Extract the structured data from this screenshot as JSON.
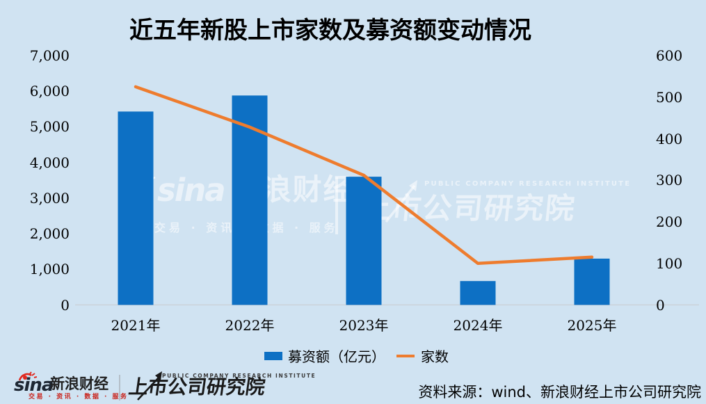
{
  "title": "近五年新股上市家数及募资额变动情况",
  "chart_data": {
    "type": "bar",
    "subtype": "dual-axis combo: bars (left axis) + line (right axis)",
    "categories": [
      "2021年",
      "2022年",
      "2023年",
      "2024年",
      "2025年"
    ],
    "series": [
      {
        "name": "募资额（亿元）",
        "type": "bar",
        "axis": "left",
        "color": "#0d70c4",
        "values": [
          5430,
          5880,
          3600,
          670,
          1300
        ]
      },
      {
        "name": "家数",
        "type": "line",
        "axis": "right",
        "color": "#ee7c2e",
        "values": [
          525,
          428,
          312,
          100,
          115
        ]
      }
    ],
    "left_axis": {
      "min": 0,
      "max": 7000,
      "ticks": [
        "7,000",
        "6,000",
        "5,000",
        "4,000",
        "3,000",
        "2,000",
        "1,000",
        "0"
      ]
    },
    "right_axis": {
      "min": 0,
      "max": 600,
      "ticks": [
        "600",
        "500",
        "400",
        "300",
        "200",
        "100",
        "0"
      ]
    },
    "legend_position": "bottom",
    "grid": false,
    "axis_line_color": "#c9d0d6",
    "background_color": "#d0e3f2"
  },
  "watermark": {
    "sina": "sina",
    "finance": "新浪财经",
    "tagline": "交易 · 资讯 · 数据 · 服务",
    "institute_en": "PUBLIC COMPANY RESEARCH INSTITUTE",
    "institute_cn": "上市公司研究院"
  },
  "footer": {
    "sina": "sina",
    "sina_finance": "新浪财经",
    "sina_tagline": "交易 · 资讯 · 数据 · 服务",
    "institute_en": "PUBLIC COMPANY RESEARCH INSTITUTE",
    "institute_cn": "上市公司研究院",
    "source": "资料来源：wind、新浪财经上市公司研究院"
  }
}
